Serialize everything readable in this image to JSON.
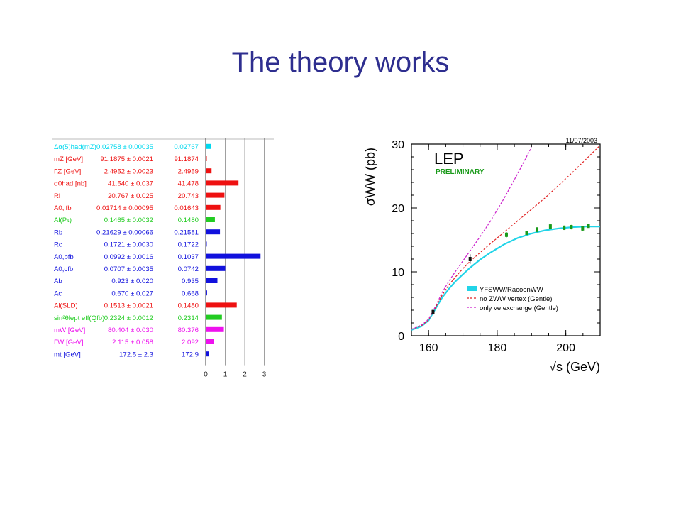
{
  "slide": {
    "title": "The theory works"
  },
  "chart_data": [
    {
      "type": "bar",
      "xlim": [
        0,
        3
      ],
      "xticks": [
        "0",
        "1",
        "2",
        "3"
      ],
      "grid": true,
      "rows": [
        {
          "label": "Δα(5)had(mZ)",
          "meas": "0.02758 ± 0.00035",
          "fit": "0.02767",
          "pull": 0.26,
          "color": "#00d8ee"
        },
        {
          "label": "mZ [GeV]",
          "meas": "91.1875 ± 0.0021",
          "fit": "91.1874",
          "pull": 0.05,
          "color": "#ee1111"
        },
        {
          "label": "ΓZ [GeV]",
          "meas": "2.4952 ± 0.0023",
          "fit": "2.4959",
          "pull": 0.3,
          "color": "#ee1111"
        },
        {
          "label": "σ0had [nb]",
          "meas": "41.540 ± 0.037",
          "fit": "41.478",
          "pull": 1.68,
          "color": "#ee1111"
        },
        {
          "label": "Rl",
          "meas": "20.767 ± 0.025",
          "fit": "20.743",
          "pull": 0.96,
          "color": "#ee1111"
        },
        {
          "label": "A0,lfb",
          "meas": "0.01714 ± 0.00095",
          "fit": "0.01643",
          "pull": 0.75,
          "color": "#ee1111"
        },
        {
          "label": "Al(Pτ)",
          "meas": "0.1465 ± 0.0032",
          "fit": "0.1480",
          "pull": 0.47,
          "color": "#22cc22"
        },
        {
          "label": "Rb",
          "meas": "0.21629 ± 0.00066",
          "fit": "0.21581",
          "pull": 0.73,
          "color": "#1111dd"
        },
        {
          "label": "Rc",
          "meas": "0.1721 ± 0.0030",
          "fit": "0.1722",
          "pull": 0.03,
          "color": "#1111dd"
        },
        {
          "label": "A0,bfb",
          "meas": "0.0992 ± 0.0016",
          "fit": "0.1037",
          "pull": 2.81,
          "color": "#1111dd"
        },
        {
          "label": "A0,cfb",
          "meas": "0.0707 ± 0.0035",
          "fit": "0.0742",
          "pull": 1.0,
          "color": "#1111dd"
        },
        {
          "label": "Ab",
          "meas": "0.923 ± 0.020",
          "fit": "0.935",
          "pull": 0.6,
          "color": "#1111dd"
        },
        {
          "label": "Ac",
          "meas": "0.670 ± 0.027",
          "fit": "0.668",
          "pull": 0.07,
          "color": "#1111dd"
        },
        {
          "label": "Al(SLD)",
          "meas": "0.1513 ± 0.0021",
          "fit": "0.1480",
          "pull": 1.59,
          "color": "#ee1111"
        },
        {
          "label": "sin²θlept eff(Qfb)",
          "meas": "0.2324 ± 0.0012",
          "fit": "0.2314",
          "pull": 0.83,
          "color": "#22cc22"
        },
        {
          "label": "mW [GeV]",
          "meas": "80.404 ± 0.030",
          "fit": "80.376",
          "pull": 0.93,
          "color": "#ee11ee"
        },
        {
          "label": "ΓW [GeV]",
          "meas": "2.115 ± 0.058",
          "fit": "2.092",
          "pull": 0.4,
          "color": "#ee11ee"
        },
        {
          "label": "mt [GeV]",
          "meas": "172.5 ± 2.3",
          "fit": "172.9",
          "pull": 0.17,
          "color": "#1111dd"
        }
      ]
    },
    {
      "type": "line",
      "date": "11/07/2003",
      "tag": "LEP",
      "subtag": "PRELIMINARY",
      "xlabel": "√s (GeV)",
      "ylabel": "σWW (pb)",
      "xlim": [
        155,
        210
      ],
      "ylim": [
        0,
        30
      ],
      "xticks": [
        160,
        180,
        200
      ],
      "yticks": [
        0,
        10,
        20,
        30
      ],
      "legend": "bottom-right",
      "legend_entries": [
        "YFSWW/RacoonWW",
        "no ZWW vertex (Gentle)",
        "only νe exchange (Gentle)"
      ],
      "series": [
        {
          "name": "YFSWW/RacoonWW",
          "style": "band",
          "color": "#22d4e8",
          "x": [
            155,
            158,
            160,
            161,
            162,
            164,
            166,
            168,
            170,
            172,
            175,
            178,
            182,
            186,
            190,
            194,
            198,
            202,
            206,
            210
          ],
          "y": [
            0.9,
            1.5,
            2.4,
            3.3,
            4.2,
            6.0,
            7.4,
            8.6,
            9.6,
            10.6,
            11.9,
            13.0,
            14.3,
            15.3,
            16.0,
            16.5,
            16.8,
            17.0,
            17.1,
            17.1
          ]
        },
        {
          "name": "no ZWW vertex (Gentle)",
          "style": "dash",
          "color": "#e02020",
          "x": [
            155,
            158,
            160,
            161,
            162,
            164,
            166,
            168,
            170,
            172,
            175,
            178,
            182,
            186,
            190,
            194,
            198,
            202,
            206,
            210
          ],
          "y": [
            1.0,
            1.6,
            2.5,
            3.5,
            4.4,
            6.4,
            8.0,
            9.3,
            10.5,
            11.6,
            13.0,
            14.4,
            16.2,
            18.0,
            19.8,
            21.6,
            23.6,
            25.6,
            27.7,
            29.8
          ]
        },
        {
          "name": "only νe exchange (Gentle)",
          "style": "dash",
          "color": "#cc22cc",
          "x": [
            155,
            158,
            160,
            161,
            162,
            164,
            166,
            168,
            170,
            172,
            175,
            178,
            182,
            186,
            190
          ],
          "y": [
            1.0,
            1.7,
            2.6,
            3.6,
            4.6,
            6.8,
            8.6,
            10.2,
            11.7,
            13.2,
            15.5,
            17.9,
            21.5,
            25.4,
            29.5
          ]
        }
      ],
      "points": [
        {
          "x": 161.3,
          "y": 3.7,
          "err": 0.45,
          "color": "#111111"
        },
        {
          "x": 172.1,
          "y": 12.0,
          "err": 0.75,
          "color": "#111111"
        },
        {
          "x": 182.7,
          "y": 15.8,
          "err": 0.4,
          "color": "#1a9a1a"
        },
        {
          "x": 188.6,
          "y": 16.1,
          "err": 0.25,
          "color": "#1a9a1a"
        },
        {
          "x": 191.6,
          "y": 16.6,
          "err": 0.4,
          "color": "#1a9a1a"
        },
        {
          "x": 195.5,
          "y": 17.1,
          "err": 0.35,
          "color": "#1a9a1a"
        },
        {
          "x": 199.5,
          "y": 16.9,
          "err": 0.35,
          "color": "#1a9a1a"
        },
        {
          "x": 201.6,
          "y": 17.0,
          "err": 0.35,
          "color": "#1a9a1a"
        },
        {
          "x": 204.9,
          "y": 16.8,
          "err": 0.35,
          "color": "#1a9a1a"
        },
        {
          "x": 206.6,
          "y": 17.2,
          "err": 0.25,
          "color": "#1a9a1a"
        }
      ]
    }
  ]
}
